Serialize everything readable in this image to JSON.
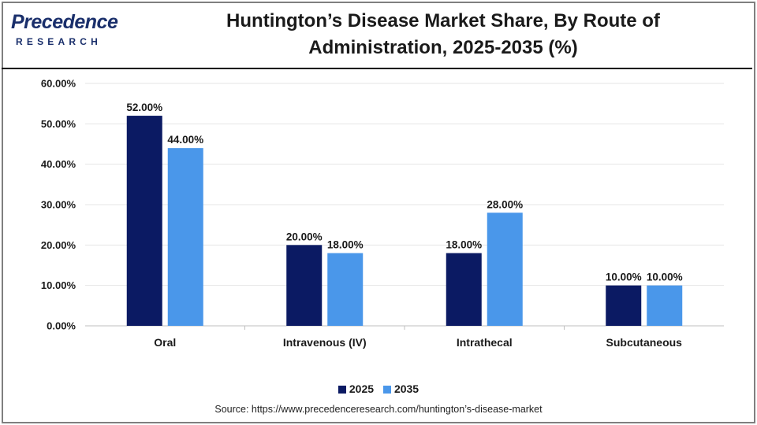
{
  "brand": {
    "name": "Precedence",
    "subtitle": "RESEARCH",
    "color": "#1a2f6b",
    "accent_colors": [
      "#e24a2a",
      "#4aa3df"
    ]
  },
  "chart_data": {
    "type": "bar",
    "title_line1": "Huntington’s Disease Market Share, By Route of",
    "title_line2": "Administration, 2025-2035 (%)",
    "categories": [
      "Oral",
      "Intravenous (IV)",
      "Intrathecal",
      "Subcutaneous"
    ],
    "series": [
      {
        "name": "2025",
        "color": "#0b1a63",
        "values": [
          52,
          20,
          18,
          10
        ],
        "labels": [
          "52.00%",
          "20.00%",
          "18.00%",
          "10.00%"
        ]
      },
      {
        "name": "2035",
        "color": "#4a97ea",
        "values": [
          44,
          18,
          28,
          10
        ],
        "labels": [
          "44.00%",
          "18.00%",
          "28.00%",
          "10.00%"
        ]
      }
    ],
    "ylim": [
      0,
      60
    ],
    "yticks": [
      0,
      10,
      20,
      30,
      40,
      50,
      60
    ],
    "ytick_labels": [
      "0.00%",
      "10.00%",
      "20.00%",
      "30.00%",
      "40.00%",
      "50.00%",
      "60.00%"
    ],
    "xlabel": "",
    "ylabel": "",
    "grid": true,
    "legend_position": "bottom-center"
  },
  "source": "Source: https://www.precedenceresearch.com/huntington’s-disease-market"
}
